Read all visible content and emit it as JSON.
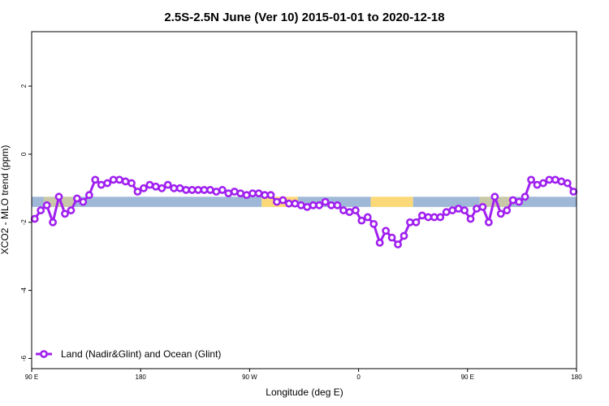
{
  "chart_data": {
    "type": "line",
    "title": "2.5S-2.5N June (Ver 10)   2015-01-01 to 2020-12-18",
    "xlabel": "Longitude (deg E)",
    "ylabel": "XCO2 - MLO trend (ppm)",
    "xlim": [
      0,
      450
    ],
    "ylim": [
      -6.3,
      3.6
    ],
    "x_ticks": [
      {
        "value": 0,
        "label": "90 E"
      },
      {
        "value": 90,
        "label": "180"
      },
      {
        "value": 180,
        "label": "90 W"
      },
      {
        "value": 270,
        "label": "0"
      },
      {
        "value": 360,
        "label": "90 E"
      },
      {
        "value": 450,
        "label": "180"
      }
    ],
    "y_ticks": [
      {
        "value": 2,
        "label": "2"
      },
      {
        "value": 0,
        "label": "0"
      },
      {
        "value": -2,
        "label": "-2"
      },
      {
        "value": -4,
        "label": "-4"
      },
      {
        "value": -6,
        "label": "-6"
      }
    ],
    "background_band": {
      "y_range": [
        -1.55,
        -1.25
      ],
      "segments": [
        {
          "x": [
            0,
            10
          ],
          "surface": "ocean"
        },
        {
          "x": [
            10,
            35
          ],
          "surface": "mixed"
        },
        {
          "x": [
            35,
            190
          ],
          "surface": "ocean"
        },
        {
          "x": [
            190,
            220
          ],
          "surface": "land"
        },
        {
          "x": [
            220,
            280
          ],
          "surface": "ocean"
        },
        {
          "x": [
            280,
            315
          ],
          "surface": "land"
        },
        {
          "x": [
            315,
            370
          ],
          "surface": "ocean"
        },
        {
          "x": [
            370,
            395
          ],
          "surface": "mixed"
        },
        {
          "x": [
            395,
            450
          ],
          "surface": "ocean"
        }
      ],
      "colors": {
        "ocean": "#a0b8d8",
        "land": "#fcd978",
        "mixed": "#c8c8a8"
      }
    },
    "series": [
      {
        "name": "Land (Nadir&Glint) and Ocean (Glint)",
        "color": "#a020f0",
        "x": [
          2.5,
          7.5,
          12.5,
          17.5,
          22.5,
          27.5,
          32.5,
          37.5,
          42.5,
          47.5,
          52.5,
          57.5,
          62.5,
          67.5,
          72.5,
          77.5,
          82.5,
          87.5,
          92.5,
          97.5,
          102.5,
          107.5,
          112.5,
          117.5,
          122.5,
          127.5,
          132.5,
          137.5,
          142.5,
          147.5,
          152.5,
          157.5,
          162.5,
          167.5,
          172.5,
          177.5,
          182.5,
          187.5,
          192.5,
          197.5,
          202.5,
          207.5,
          212.5,
          217.5,
          222.5,
          227.5,
          232.5,
          237.5,
          242.5,
          247.5,
          252.5,
          257.5,
          262.5,
          267.5,
          272.5,
          277.5,
          282.5,
          287.5,
          292.5,
          297.5,
          302.5,
          307.5,
          312.5,
          317.5,
          322.5,
          327.5,
          332.5,
          337.5,
          342.5,
          347.5,
          352.5,
          357.5,
          362.5,
          367.5,
          372.5,
          377.5,
          382.5,
          387.5,
          392.5,
          397.5,
          402.5,
          407.5,
          412.5,
          417.5,
          422.5,
          427.5,
          432.5,
          437.5,
          442.5,
          447.5
        ],
        "y": [
          -1.9,
          -1.65,
          -1.5,
          -2.0,
          -1.25,
          -1.75,
          -1.65,
          -1.3,
          -1.4,
          -1.2,
          -0.75,
          -0.9,
          -0.85,
          -0.75,
          -0.75,
          -0.8,
          -0.85,
          -1.1,
          -1.0,
          -0.9,
          -0.95,
          -1.0,
          -0.9,
          -1.0,
          -1.0,
          -1.05,
          -1.05,
          -1.05,
          -1.05,
          -1.05,
          -1.1,
          -1.05,
          -1.15,
          -1.1,
          -1.15,
          -1.2,
          -1.15,
          -1.15,
          -1.2,
          -1.2,
          -1.4,
          -1.35,
          -1.45,
          -1.45,
          -1.5,
          -1.55,
          -1.5,
          -1.5,
          -1.4,
          -1.5,
          -1.5,
          -1.65,
          -1.7,
          -1.65,
          -1.95,
          -1.85,
          -2.05,
          -2.6,
          -2.25,
          -2.45,
          -2.65,
          -2.4,
          -2.0,
          -2.0,
          -1.8,
          -1.85,
          -1.85,
          -1.85,
          -1.7,
          -1.65,
          -1.6,
          -1.65,
          -1.9,
          -1.6,
          -1.55,
          -2.0,
          -1.25,
          -1.75,
          -1.65,
          -1.35,
          -1.4,
          -1.25,
          -0.75,
          -0.9,
          -0.85,
          -0.75,
          -0.75,
          -0.8,
          -0.85,
          -1.1
        ]
      }
    ],
    "legend": {
      "position": "bottom-left"
    },
    "grid": false
  }
}
